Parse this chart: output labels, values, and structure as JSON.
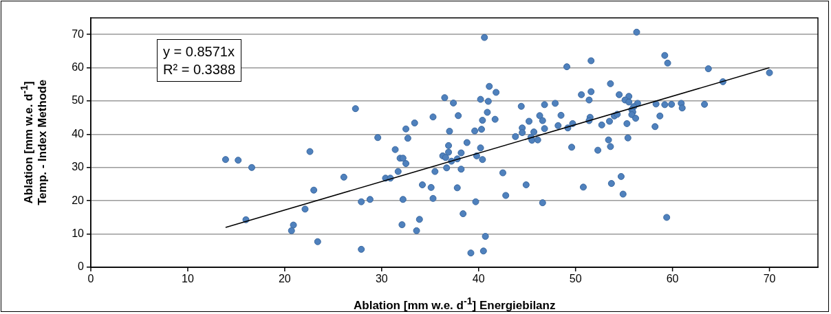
{
  "chart_data": {
    "type": "scatter",
    "xlabel": "Ablation [mm w.e. d$^{-1}$] Energiebilanz",
    "ylabel": "Ablation [mm w.e. d$^{-1}$]\nTemp. - Index Methode",
    "annotations": [
      "y = 0.8571x",
      "R² = 0.3388"
    ],
    "xlim": [
      0,
      75
    ],
    "xticks": [
      0,
      10,
      20,
      30,
      40,
      50,
      60,
      70
    ],
    "ylim": [
      0,
      75
    ],
    "yticks": [
      0,
      10,
      20,
      30,
      40,
      50,
      60,
      70
    ],
    "grid": "y",
    "marker": "circle",
    "series": [
      {
        "color": "#4f81bd",
        "x": [
          13.9,
          15.2,
          16.6,
          16.0,
          27.3,
          29.6,
          32.5,
          32.7,
          22.6,
          31.4,
          31.9,
          32.2,
          32.5,
          31.7,
          26.1,
          30.4,
          30.9,
          23.0,
          22.1,
          27.9,
          28.8,
          32.2,
          32.1,
          20.9,
          20.7,
          23.4,
          27.9,
          40.6,
          49.1,
          41.1,
          41.8,
          36.5,
          37.4,
          40.2,
          41.0,
          44.4,
          46.8,
          47.9,
          35.3,
          37.9,
          40.9,
          40.4,
          41.7,
          33.4,
          37.0,
          39.6,
          40.3,
          38.8,
          36.9,
          36.9,
          40.2,
          38.2,
          36.3,
          36.6,
          37.2,
          37.8,
          39.8,
          40.4,
          36.7,
          38.2,
          35.5,
          42.5,
          34.2,
          35.1,
          37.8,
          35.3,
          39.7,
          42.8,
          44.9,
          46.6,
          38.4,
          33.9,
          33.6,
          40.7,
          39.2,
          40.5,
          43.8,
          44.5,
          44.5,
          45.2,
          45.4,
          45.7,
          45.5,
          46.1,
          46.3,
          46.6,
          46.8,
          48.2,
          48.5,
          49.2,
          56.3,
          51.6,
          59.2,
          59.5,
          63.7,
          65.2,
          53.6,
          50.6,
          51.6,
          54.5,
          55.5,
          51.4,
          55.1,
          55.5,
          56.4,
          58.3,
          59.2,
          59.9,
          60.9,
          61.0,
          63.3,
          56.0,
          55.8,
          55.9,
          55.8,
          56.2,
          54.0,
          54.3,
          58.7,
          51.5,
          51.4,
          53.5,
          52.7,
          55.3,
          58.2,
          49.7,
          53.4,
          55.4,
          49.6,
          53.6,
          52.3,
          54.7,
          50.8,
          53.7,
          54.9,
          59.4,
          70.0
        ],
        "values": [
          32.4,
          32.2,
          30.0,
          14.3,
          47.7,
          39.0,
          41.6,
          38.8,
          34.8,
          35.4,
          32.8,
          32.8,
          31.2,
          28.8,
          27.1,
          26.8,
          26.8,
          23.2,
          17.5,
          19.7,
          20.4,
          20.4,
          12.8,
          12.7,
          11.0,
          7.7,
          5.4,
          69.1,
          60.3,
          54.4,
          52.6,
          51.0,
          49.4,
          50.5,
          49.9,
          48.4,
          48.9,
          49.3,
          45.2,
          45.6,
          46.6,
          44.2,
          44.5,
          43.4,
          40.9,
          41.0,
          41.5,
          37.5,
          36.6,
          34.6,
          35.9,
          34.4,
          33.5,
          33.0,
          31.9,
          32.6,
          33.5,
          32.4,
          29.9,
          29.5,
          28.8,
          28.4,
          24.8,
          24.0,
          23.9,
          20.7,
          19.7,
          21.6,
          24.8,
          19.4,
          16.1,
          14.4,
          11.0,
          9.3,
          4.3,
          4.9,
          39.3,
          41.9,
          40.5,
          43.9,
          39.1,
          40.7,
          38.2,
          38.3,
          45.6,
          44.1,
          41.7,
          42.6,
          45.7,
          41.9,
          70.7,
          62.1,
          63.7,
          61.4,
          59.7,
          55.8,
          55.2,
          51.9,
          52.8,
          51.9,
          51.4,
          50.3,
          50.3,
          49.7,
          49.3,
          49.1,
          48.9,
          49.0,
          49.3,
          47.9,
          49.0,
          48.3,
          47.4,
          46.7,
          45.9,
          44.8,
          45.5,
          46.0,
          45.5,
          45.1,
          44.1,
          43.9,
          42.8,
          43.2,
          42.3,
          43.2,
          38.3,
          38.9,
          36.1,
          36.3,
          35.2,
          27.3,
          24.1,
          25.2,
          22.0,
          15.0,
          58.5
        ]
      },
      {
        "type": "line",
        "color": "#000000",
        "x": [
          13.9,
          70
        ],
        "values": [
          12.0,
          60.0
        ],
        "marker": "none"
      }
    ]
  }
}
